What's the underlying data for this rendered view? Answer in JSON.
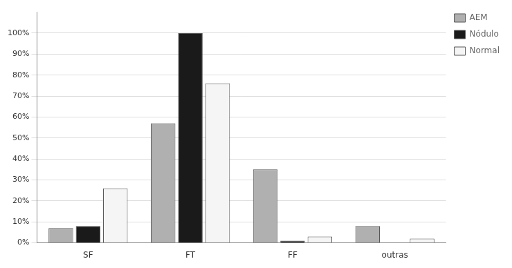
{
  "chart_data": {
    "type": "bar",
    "categories": [
      "SF",
      "FT",
      "FF",
      "outras"
    ],
    "series": [
      {
        "name": "AEM",
        "color": "#b0b0b0",
        "values": [
          7,
          57,
          35,
          8
        ]
      },
      {
        "name": "Nódulo",
        "color": "#1a1a1a",
        "values": [
          8,
          100,
          1,
          0
        ]
      },
      {
        "name": "Normal",
        "color": "#f5f5f5",
        "values": [
          26,
          76,
          3,
          2
        ]
      }
    ],
    "ylim": [
      0,
      110
    ],
    "yticks": [
      {
        "value": 0,
        "label": "0%"
      },
      {
        "value": 10,
        "label": "10%"
      },
      {
        "value": 20,
        "label": "20%"
      },
      {
        "value": 30,
        "label": "30%"
      },
      {
        "value": 40,
        "label": "40%"
      },
      {
        "value": 50,
        "label": "50%"
      },
      {
        "value": 60,
        "label": "60%"
      },
      {
        "value": 70,
        "label": "70%"
      },
      {
        "value": 80,
        "label": "80%"
      },
      {
        "value": 90,
        "label": "90%"
      },
      {
        "value": 100,
        "label": "100%"
      }
    ],
    "grid": true,
    "legend": "right"
  }
}
